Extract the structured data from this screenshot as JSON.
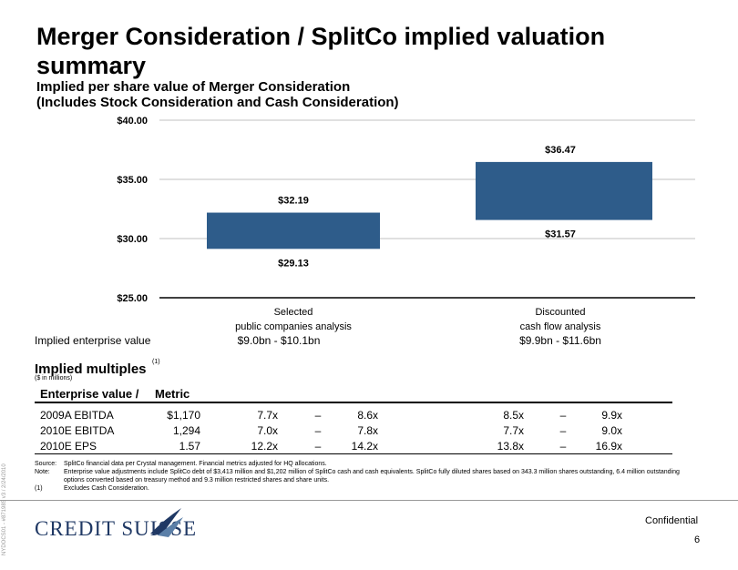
{
  "title": "Merger Consideration / SplitCo implied valuation summary",
  "subtitle_line1": "Implied per share value of Merger Consideration",
  "subtitle_line2": "(Includes Stock Consideration and Cash Consideration)",
  "colors": {
    "bar": "#2e5c8a",
    "grid": "#c0c0c0",
    "logo": "#1f3864"
  },
  "chart_data": {
    "type": "bar",
    "subtype": "floating-range",
    "categories": [
      "Selected public companies analysis",
      "Discounted cash flow analysis"
    ],
    "category_lines": [
      [
        "Selected",
        "public companies analysis"
      ],
      [
        "Discounted",
        "cash flow analysis"
      ]
    ],
    "low": [
      29.13,
      31.57
    ],
    "high": [
      32.19,
      36.47
    ],
    "low_labels": [
      "$29.13",
      "$31.57"
    ],
    "high_labels": [
      "$32.19",
      "$36.47"
    ],
    "ylim": [
      25,
      40
    ],
    "yticks": [
      25,
      30,
      35,
      40
    ],
    "ytick_labels": [
      "$25.00",
      "$30.00",
      "$35.00",
      "$40.00"
    ],
    "grid": true
  },
  "implied_ev": {
    "label": "Implied enterprise value",
    "values": [
      "$9.0bn - $10.1bn",
      "$9.9bn - $11.6bn"
    ]
  },
  "multiples": {
    "title": "Implied multiples",
    "superscript": "(1)",
    "units": "($ in millions)",
    "header_ev": "Enterprise value /",
    "header_metric": "Metric",
    "rows": [
      {
        "name": "2009A EBITDA",
        "metric": "$1,170",
        "lo1": "7.7x",
        "dash1": "–",
        "hi1": "8.6x",
        "lo2": "8.5x",
        "dash2": "–",
        "hi2": "9.9x"
      },
      {
        "name": "2010E EBITDA",
        "metric": "1,294",
        "lo1": "7.0x",
        "dash1": "–",
        "hi1": "7.8x",
        "lo2": "7.7x",
        "dash2": "–",
        "hi2": "9.0x"
      },
      {
        "name": "2010E EPS",
        "metric": "1.57",
        "lo1": "12.2x",
        "dash1": "–",
        "hi1": "14.2x",
        "lo2": "13.8x",
        "dash2": "–",
        "hi2": "16.9x"
      }
    ]
  },
  "footnotes": {
    "source_key": "Source:",
    "source_text": "SplitCo financial data per Crystal management.  Financial metrics adjusted for HQ allocations.",
    "note_key": "Note:",
    "note_text": "Enterprise value adjustments include SplitCo debt of $3,413 million and $1,202 million of SplitCo cash and cash equivalents.  SplitCo fully diluted shares based on 343.3 million shares outstanding, 6.4 million outstanding options converted based on treasury method and 9.3 million restricted shares and share units.",
    "fn1_key": "(1)",
    "fn1_text": "Excludes Cash Consideration."
  },
  "side_text": "NYDOCS01 - #871985 v3 / 2/24/2010",
  "logo": {
    "text": "CREDIT SUISSE",
    "icon": "sails-logo-icon"
  },
  "confidential": "Confidential",
  "page_number": "6"
}
